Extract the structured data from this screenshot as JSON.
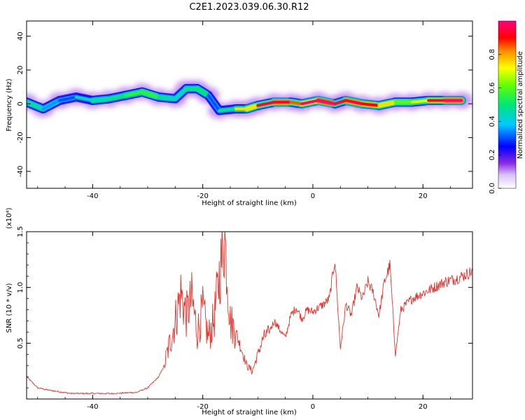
{
  "title": "C2E1.2023.039.06.30.R12",
  "chart_data": [
    {
      "type": "heatmap",
      "xlabel": "Height of straight line (km)",
      "ylabel": "Frequency (Hz)",
      "xlim": [
        -52,
        29
      ],
      "ylim": [
        -50,
        49
      ],
      "xticks": [
        -40,
        -20,
        0,
        20
      ],
      "yticks": [
        -40,
        -20,
        0,
        20,
        40
      ],
      "colorbar": {
        "label": "Normalized spectral amplitude",
        "range": [
          0.0,
          1.0
        ],
        "ticks": [
          0.0,
          0.2,
          0.4,
          0.6,
          0.8
        ],
        "tick_labels": [
          "0.0",
          "0.2",
          "0.4",
          "0.6",
          "0.8"
        ]
      },
      "ridge": [
        {
          "x": -52,
          "y": 1,
          "amp": 0.45
        },
        {
          "x": -49,
          "y": -3,
          "amp": 0.35
        },
        {
          "x": -46,
          "y": 2,
          "amp": 0.3
        },
        {
          "x": -43,
          "y": 4,
          "amp": 0.25
        },
        {
          "x": -40,
          "y": 2,
          "amp": 0.45
        },
        {
          "x": -37,
          "y": 3,
          "amp": 0.4
        },
        {
          "x": -34,
          "y": 5,
          "amp": 0.5
        },
        {
          "x": -31,
          "y": 7,
          "amp": 0.55
        },
        {
          "x": -28,
          "y": 4,
          "amp": 0.45
        },
        {
          "x": -25,
          "y": 3,
          "amp": 0.35
        },
        {
          "x": -23,
          "y": 9,
          "amp": 0.45
        },
        {
          "x": -21,
          "y": 9,
          "amp": 0.5
        },
        {
          "x": -19,
          "y": 5,
          "amp": 0.3
        },
        {
          "x": -17,
          "y": -4,
          "amp": 0.3
        },
        {
          "x": -14,
          "y": -3,
          "amp": 0.5
        },
        {
          "x": -12,
          "y": -3,
          "amp": 0.75
        },
        {
          "x": -10,
          "y": -1,
          "amp": 0.6
        },
        {
          "x": -7,
          "y": 1,
          "amp": 0.95
        },
        {
          "x": -4,
          "y": 1,
          "amp": 0.6
        },
        {
          "x": -2,
          "y": 0,
          "amp": 0.85
        },
        {
          "x": 1,
          "y": 2,
          "amp": 1.0
        },
        {
          "x": 4,
          "y": 0,
          "amp": 0.55
        },
        {
          "x": 6,
          "y": 2,
          "amp": 0.95
        },
        {
          "x": 9,
          "y": 0,
          "amp": 0.9
        },
        {
          "x": 12,
          "y": -1,
          "amp": 0.75
        },
        {
          "x": 15,
          "y": 1,
          "amp": 0.6
        },
        {
          "x": 18,
          "y": 1,
          "amp": 0.55
        },
        {
          "x": 21,
          "y": 2,
          "amp": 0.7
        },
        {
          "x": 24,
          "y": 2,
          "amp": 0.95
        },
        {
          "x": 27,
          "y": 2,
          "amp": 1.0
        }
      ]
    },
    {
      "type": "line",
      "xlabel": "Height of straight line (km)",
      "ylabel": "SNR (10 * v/v)",
      "yscale_label": "(x10⁴)",
      "xlim": [
        -52,
        29
      ],
      "ylim": [
        0,
        1.5
      ],
      "xticks": [
        -40,
        -20,
        0,
        20
      ],
      "yticks": [
        0.5,
        1.0,
        1.5
      ],
      "ytick_labels": [
        "0.5",
        "1.0",
        "1.5"
      ],
      "color": "#e8312a",
      "series": [
        {
          "x": [
            -52,
            -50,
            -48,
            -44,
            -40,
            -36,
            -32,
            -30,
            -28,
            -27,
            -26,
            -25,
            -24,
            -23,
            -22,
            -21,
            -20,
            -19,
            -18,
            -17,
            -16,
            -15,
            -14,
            -13,
            -12,
            -11,
            -10,
            -9,
            -8,
            -7,
            -6,
            -5,
            -4,
            -3,
            -2,
            -1,
            0,
            1,
            2,
            3,
            4,
            5,
            6,
            7,
            8,
            9,
            10,
            11,
            12,
            13,
            14,
            15,
            16,
            18,
            20,
            22,
            24,
            26,
            28,
            29
          ],
          "values": [
            0.2,
            0.1,
            0.08,
            0.05,
            0.05,
            0.05,
            0.06,
            0.1,
            0.2,
            0.3,
            0.5,
            0.7,
            0.95,
            0.75,
            0.9,
            0.6,
            0.8,
            0.55,
            0.7,
            1.1,
            1.45,
            0.7,
            0.6,
            0.45,
            0.3,
            0.25,
            0.4,
            0.55,
            0.6,
            0.7,
            0.62,
            0.55,
            0.75,
            0.82,
            0.72,
            0.8,
            0.78,
            0.82,
            0.85,
            0.9,
            1.25,
            0.45,
            0.85,
            0.75,
            1.0,
            0.9,
            1.05,
            0.95,
            0.75,
            1.05,
            1.2,
            0.4,
            0.8,
            0.9,
            0.95,
            1.0,
            1.05,
            1.08,
            1.12,
            1.15
          ]
        }
      ]
    }
  ]
}
